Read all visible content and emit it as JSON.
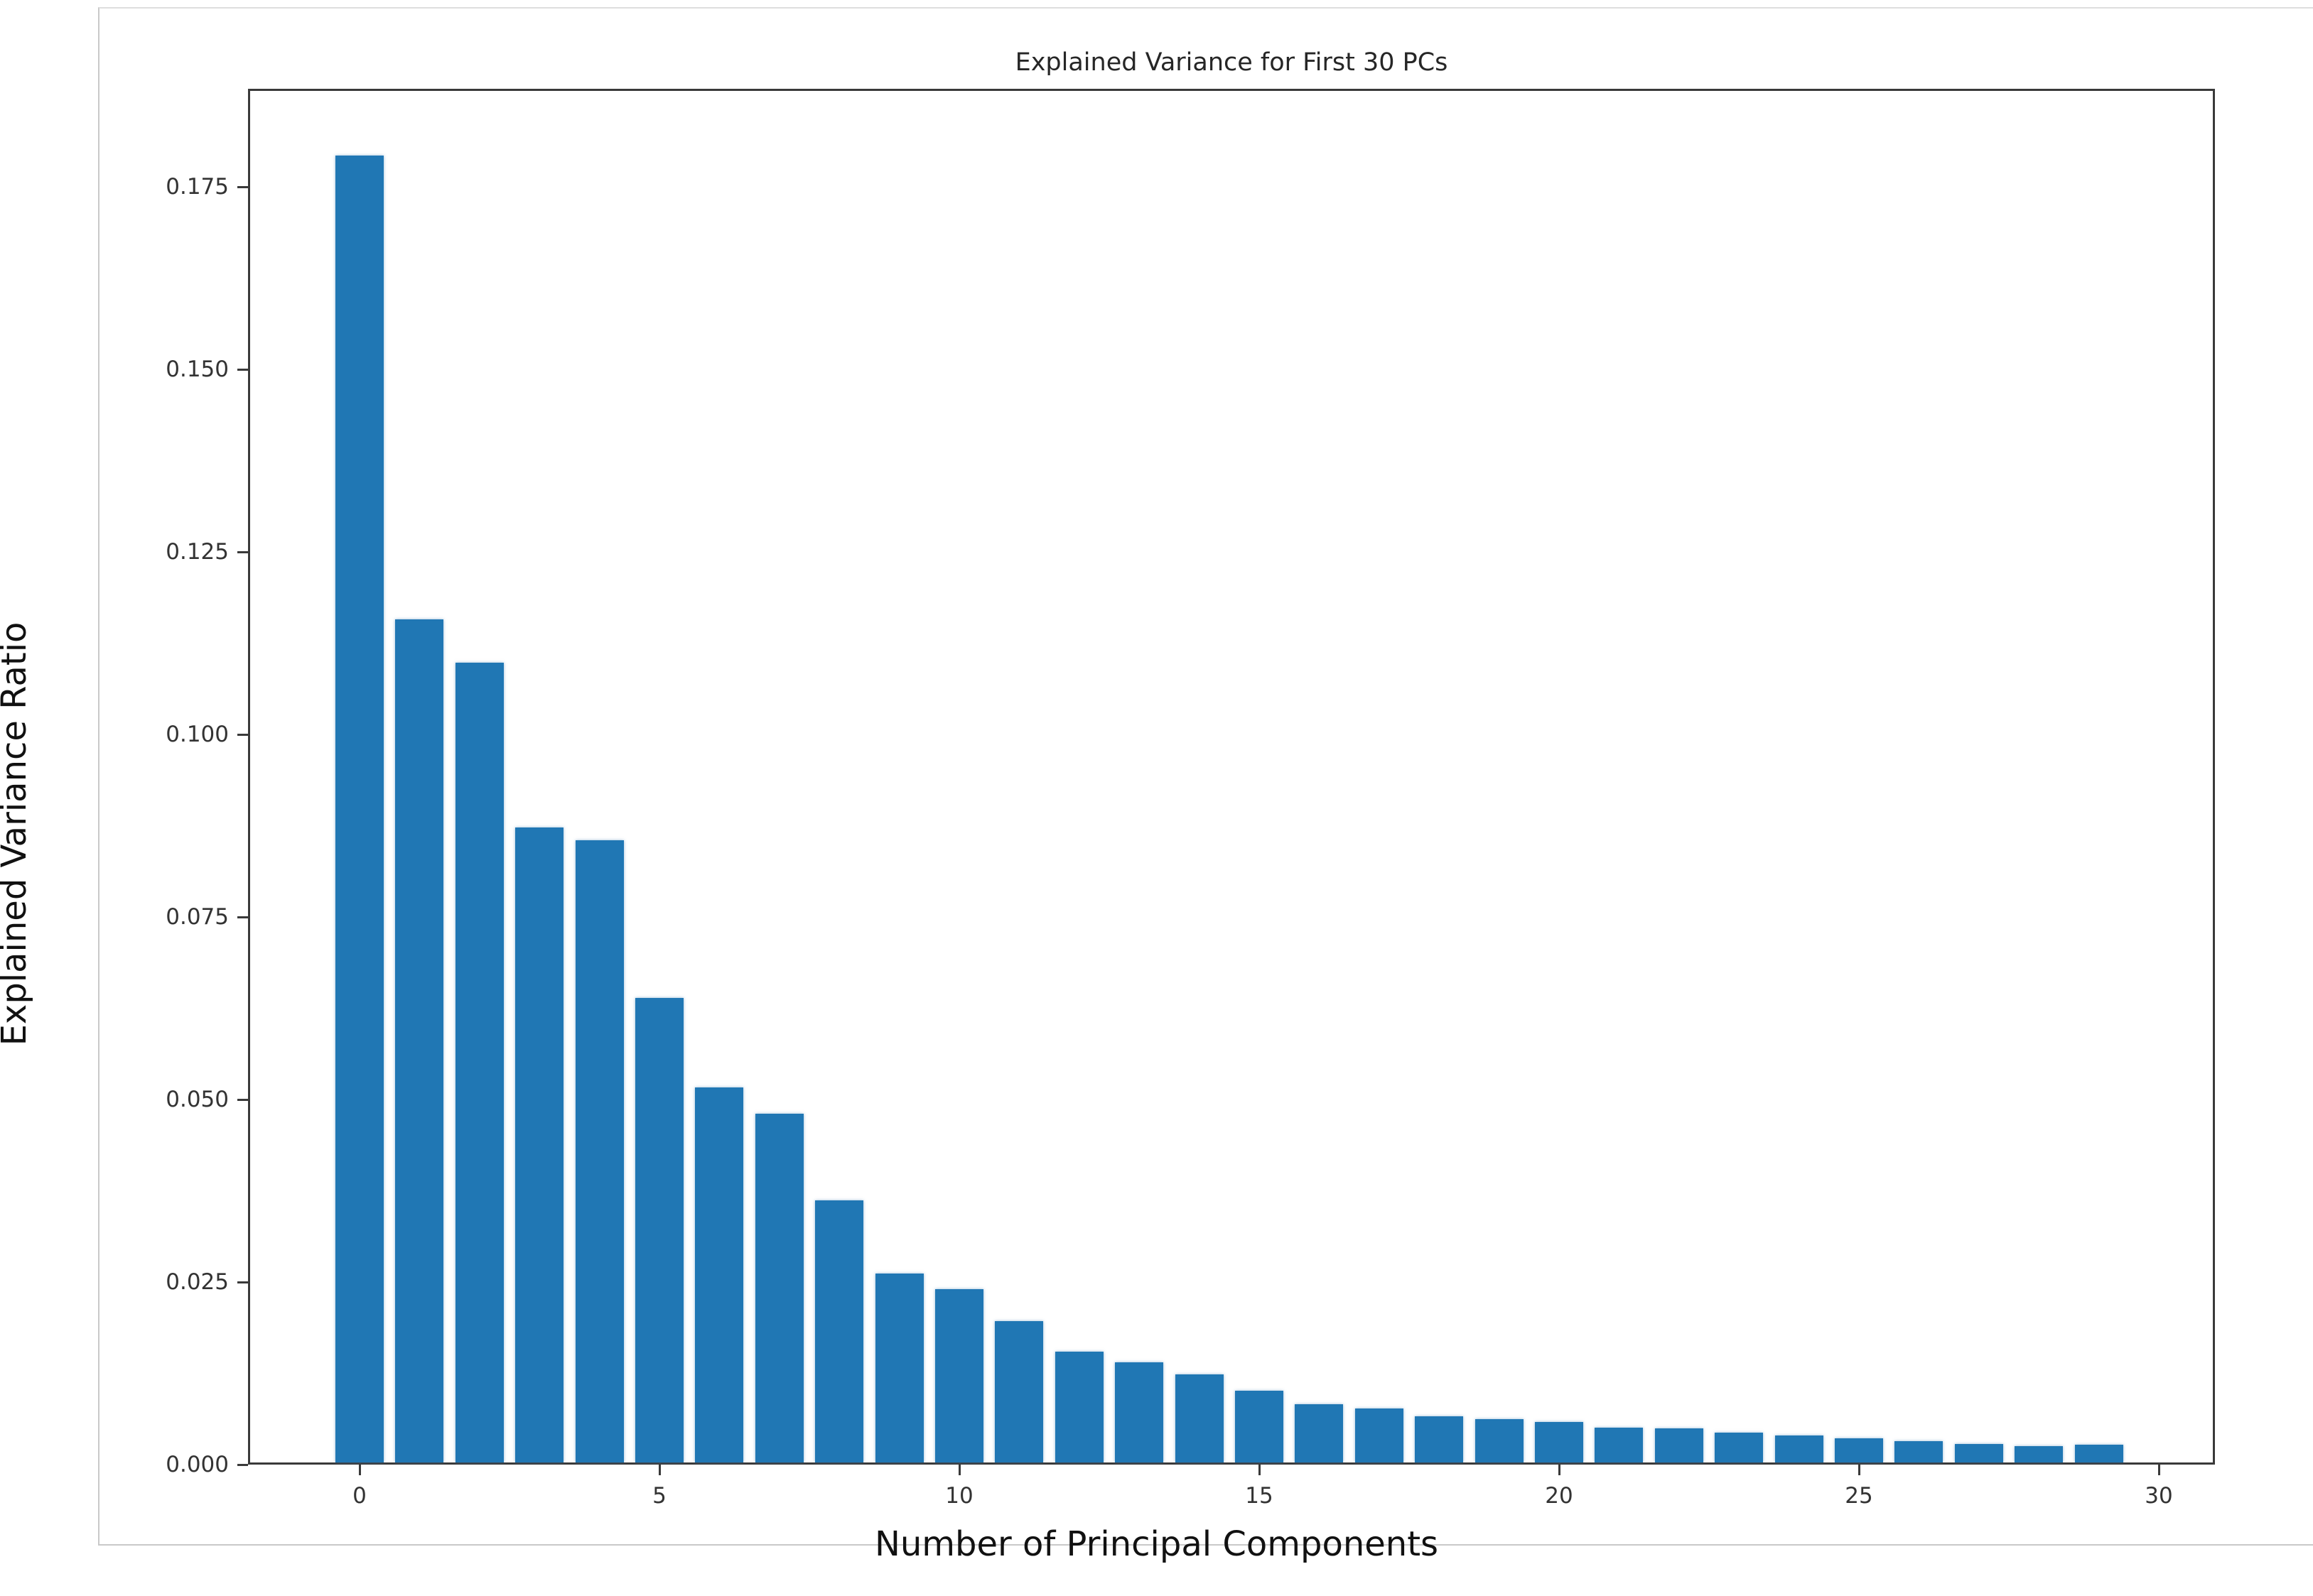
{
  "chart_data": {
    "type": "bar",
    "title": "Explained Variance for First 30 PCs",
    "xlabel": "Number of Principal Components",
    "ylabel": "Explained Variance Ratio",
    "x": [
      0,
      1,
      2,
      3,
      4,
      5,
      6,
      7,
      8,
      9,
      10,
      11,
      12,
      13,
      14,
      15,
      16,
      17,
      18,
      19,
      20,
      21,
      22,
      23,
      24,
      25,
      26,
      27,
      28,
      29
    ],
    "values": [
      0.179,
      0.1155,
      0.1095,
      0.087,
      0.0852,
      0.0636,
      0.0514,
      0.0478,
      0.0359,
      0.0259,
      0.0237,
      0.0194,
      0.0152,
      0.0137,
      0.0121,
      0.0098,
      0.008,
      0.0074,
      0.0063,
      0.0059,
      0.0055,
      0.0048,
      0.0047,
      0.0041,
      0.0037,
      0.0033,
      0.0029,
      0.0025,
      0.0022,
      0.0024
    ],
    "x_ticks": [
      0,
      5,
      10,
      15,
      20,
      25,
      30
    ],
    "y_ticks": [
      "0.000",
      "0.025",
      "0.050",
      "0.075",
      "0.100",
      "0.125",
      "0.150",
      "0.175"
    ],
    "ylim": [
      0,
      0.1884
    ],
    "bar_color": "#2077b4",
    "grid": "off",
    "legend": "none"
  }
}
